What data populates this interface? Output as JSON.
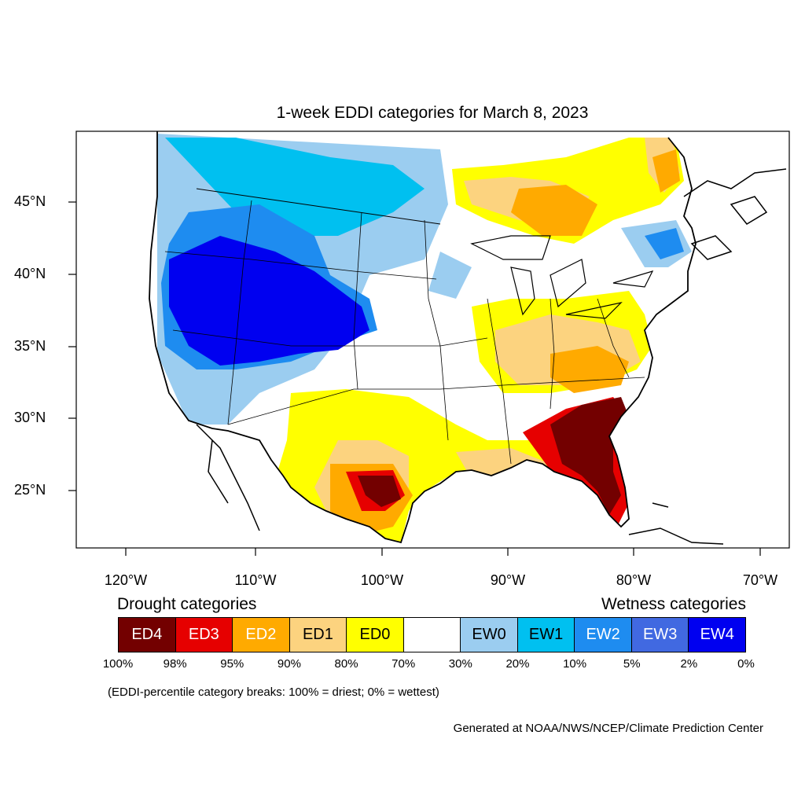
{
  "title": "1-week EDDI categories for March 8, 2023",
  "lat_labels": [
    "45°N",
    "40°N",
    "35°N",
    "30°N",
    "25°N"
  ],
  "lon_labels": [
    "120°W",
    "110°W",
    "100°W",
    "90°W",
    "80°W",
    "70°W"
  ],
  "legend": {
    "drought_heading": "Drought categories",
    "wetness_heading": "Wetness categories",
    "categories": [
      {
        "label": "ED4",
        "color": "#730000",
        "text_color": "#ffffff"
      },
      {
        "label": "ED3",
        "color": "#e60000",
        "text_color": "#ffffff"
      },
      {
        "label": "ED2",
        "color": "#ffaa00",
        "text_color": "#ffffff"
      },
      {
        "label": "ED1",
        "color": "#fcd37f",
        "text_color": "#000000"
      },
      {
        "label": "ED0",
        "color": "#ffff00",
        "text_color": "#000000"
      },
      {
        "label": "",
        "color": "#ffffff",
        "text_color": "#000000"
      },
      {
        "label": "EW0",
        "color": "#9bcdf0",
        "text_color": "#000000"
      },
      {
        "label": "EW1",
        "color": "#00c0f0",
        "text_color": "#000000"
      },
      {
        "label": "EW2",
        "color": "#1e8cf0",
        "text_color": "#ffffff"
      },
      {
        "label": "EW3",
        "color": "#4169e1",
        "text_color": "#ffffff"
      },
      {
        "label": "EW4",
        "color": "#0000f0",
        "text_color": "#ffffff"
      }
    ],
    "breaks": [
      "100%",
      "98%",
      "95%",
      "90%",
      "80%",
      "70%",
      "30%",
      "20%",
      "10%",
      "5%",
      "2%",
      "0%"
    ]
  },
  "note": "(EDDI-percentile category breaks: 100% = driest; 0% = wettest)",
  "credit": "Generated at NOAA/NWS/NCEP/Climate Prediction Center"
}
